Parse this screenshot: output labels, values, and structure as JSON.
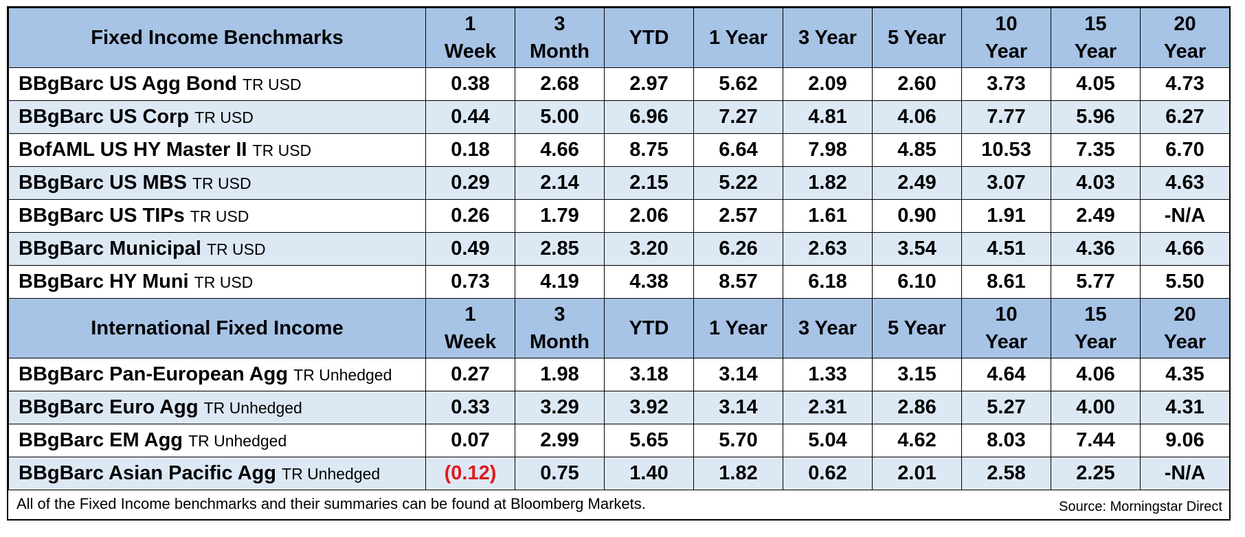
{
  "sections": [
    {
      "header": {
        "title": "Fixed Income Benchmarks",
        "columns": [
          [
            "1",
            "Week"
          ],
          [
            "3",
            "Month"
          ],
          [
            "YTD"
          ],
          [
            "1 Year"
          ],
          [
            "3 Year"
          ],
          [
            "5 Year"
          ],
          [
            "10",
            "Year"
          ],
          [
            "15",
            "Year"
          ],
          [
            "20",
            "Year"
          ]
        ]
      },
      "rows": [
        {
          "name": "BBgBarc US Agg Bond",
          "suffix": "TR USD",
          "values": [
            "0.38",
            "2.68",
            "2.97",
            "5.62",
            "2.09",
            "2.60",
            "3.73",
            "4.05",
            "4.73"
          ]
        },
        {
          "name": "BBgBarc US Corp",
          "suffix": "TR USD",
          "values": [
            "0.44",
            "5.00",
            "6.96",
            "7.27",
            "4.81",
            "4.06",
            "7.77",
            "5.96",
            "6.27"
          ]
        },
        {
          "name": "BofAML US HY Master II",
          "suffix": "TR USD",
          "values": [
            "0.18",
            "4.66",
            "8.75",
            "6.64",
            "7.98",
            "4.85",
            "10.53",
            "7.35",
            "6.70"
          ]
        },
        {
          "name": "BBgBarc US MBS",
          "suffix": "TR USD",
          "values": [
            "0.29",
            "2.14",
            "2.15",
            "5.22",
            "1.82",
            "2.49",
            "3.07",
            "4.03",
            "4.63"
          ]
        },
        {
          "name": "BBgBarc US TIPs",
          "suffix": "TR USD",
          "values": [
            "0.26",
            "1.79",
            "2.06",
            "2.57",
            "1.61",
            "0.90",
            "1.91",
            "2.49",
            "-N/A"
          ]
        },
        {
          "name": "BBgBarc Municipal",
          "suffix": "TR USD",
          "values": [
            "0.49",
            "2.85",
            "3.20",
            "6.26",
            "2.63",
            "3.54",
            "4.51",
            "4.36",
            "4.66"
          ]
        },
        {
          "name": "BBgBarc HY Muni",
          "suffix": "TR USD",
          "values": [
            "0.73",
            "4.19",
            "4.38",
            "8.57",
            "6.18",
            "6.10",
            "8.61",
            "5.77",
            "5.50"
          ]
        }
      ]
    },
    {
      "header": {
        "title": "International Fixed Income",
        "columns": [
          [
            "1",
            "Week"
          ],
          [
            "3",
            "Month"
          ],
          [
            "YTD"
          ],
          [
            "1 Year"
          ],
          [
            "3 Year"
          ],
          [
            "5 Year"
          ],
          [
            "10",
            "Year"
          ],
          [
            "15",
            "Year"
          ],
          [
            "20",
            "Year"
          ]
        ]
      },
      "rows": [
        {
          "name": "BBgBarc Pan-European Agg",
          "suffix": "TR Unhedged",
          "values": [
            "0.27",
            "1.98",
            "3.18",
            "3.14",
            "1.33",
            "3.15",
            "4.64",
            "4.06",
            "4.35"
          ]
        },
        {
          "name": "BBgBarc Euro Agg",
          "suffix": "TR Unhedged",
          "values": [
            "0.33",
            "3.29",
            "3.92",
            "3.14",
            "2.31",
            "2.86",
            "5.27",
            "4.00",
            "4.31"
          ]
        },
        {
          "name": "BBgBarc EM Agg",
          "suffix": "TR Unhedged",
          "values": [
            "0.07",
            "2.99",
            "5.65",
            "5.70",
            "5.04",
            "4.62",
            "8.03",
            "7.44",
            "9.06"
          ]
        },
        {
          "name": "BBgBarc Asian Pacific Agg",
          "suffix": "TR Unhedged",
          "values": [
            "(0.12)",
            "0.75",
            "1.40",
            "1.82",
            "0.62",
            "2.01",
            "2.58",
            "2.25",
            "-N/A"
          ]
        }
      ]
    }
  ],
  "footer": {
    "note": "All of the Fixed Income benchmarks and their summaries can be found at Bloomberg Markets.",
    "source": "Source: Morningstar Direct"
  },
  "colors": {
    "header_bg": "#a7c3e5",
    "alt_row_bg": "#dde8f5",
    "negative": "#e0191b"
  }
}
